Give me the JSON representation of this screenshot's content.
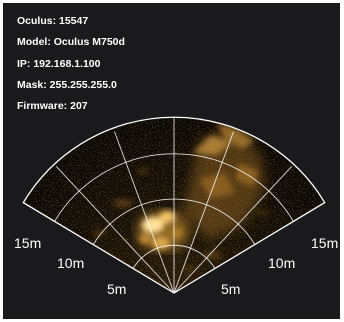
{
  "device": {
    "oculus_label": "Oculus: 15547",
    "model_label": "Model: Oculus M750d",
    "ip_label": "IP: 192.168.1.100",
    "mask_label": "Mask: 255.255.255.0",
    "firmware_label": "Firmware: 207"
  },
  "range_labels": {
    "left": [
      "15m",
      "10m",
      "5m"
    ],
    "right": [
      "15m",
      "10m",
      "5m"
    ]
  },
  "colors": {
    "background": "#1a1a1c",
    "sonar_dark": "#0c0803",
    "echo": "#d8a03c",
    "grid": "#ffffff",
    "frame": "#ffffff"
  }
}
